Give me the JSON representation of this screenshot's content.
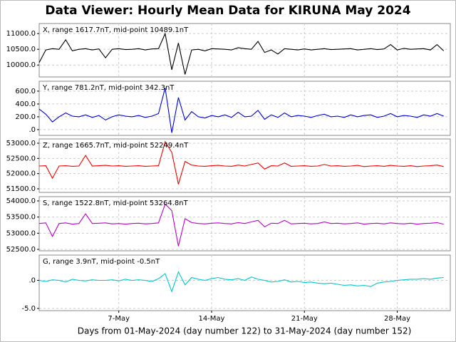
{
  "title": "Data Viewer:  Hourly Mean Data for KIRUNA May 2024",
  "x_axis": {
    "label": "Days from 01-May-2024 (day number 122) to 31-May-2024 (day number 152)",
    "xlim": [
      1,
      32
    ],
    "xticks": [
      {
        "value": 7,
        "label": "7-May"
      },
      {
        "value": 14,
        "label": "14-May"
      },
      {
        "value": 21,
        "label": "21-May"
      },
      {
        "value": 28,
        "label": "28-May"
      }
    ],
    "x": [
      1,
      1.5,
      2,
      2.5,
      3,
      3.5,
      4,
      4.5,
      5,
      5.5,
      6,
      6.5,
      7,
      7.5,
      8,
      8.5,
      9,
      9.5,
      10,
      10.5,
      11,
      11.5,
      12,
      12.5,
      13,
      13.5,
      14,
      14.5,
      15,
      15.5,
      16,
      16.5,
      17,
      17.5,
      18,
      18.5,
      19,
      19.5,
      20,
      20.5,
      21,
      21.5,
      22,
      22.5,
      23,
      23.5,
      24,
      24.5,
      25,
      25.5,
      26,
      26.5,
      27,
      27.5,
      28,
      28.5,
      29,
      29.5,
      30,
      30.5,
      31,
      31.5
    ]
  },
  "chart_data": [
    {
      "type": "line",
      "annotation": "X, range 1617.7nT, mid-point 10489.1nT",
      "ylim": [
        9620,
        11320
      ],
      "yticks": [
        {
          "value": 10000,
          "label": "10000.0"
        },
        {
          "value": 10500,
          "label": "10500.0"
        },
        {
          "value": 11000,
          "label": "11000.0"
        }
      ],
      "series": [
        {
          "color": "#000000",
          "values": [
            10080,
            10480,
            10520,
            10500,
            10800,
            10450,
            10500,
            10520,
            10480,
            10510,
            10230,
            10500,
            10520,
            10490,
            10500,
            10520,
            10480,
            10510,
            10520,
            11000,
            9850,
            10700,
            9700,
            10480,
            10500,
            10450,
            10520,
            10510,
            10500,
            10480,
            10550,
            10520,
            10500,
            10750,
            10400,
            10480,
            10350,
            10520,
            10500,
            10480,
            10510,
            10480,
            10500,
            10520,
            10490,
            10500,
            10510,
            10520,
            10480,
            10500,
            10520,
            10490,
            10510,
            10650,
            10480,
            10530,
            10500,
            10510,
            10520,
            10480,
            10650,
            10450
          ]
        }
      ]
    },
    {
      "type": "line",
      "annotation": "Y, range 781.2nT, mid-point 342.3nT",
      "ylim": [
        -90,
        755
      ],
      "yticks": [
        {
          "value": 0,
          "label": ".0"
        },
        {
          "value": 200,
          "label": "200.0"
        },
        {
          "value": 400,
          "label": "400.0"
        },
        {
          "value": 600,
          "label": "600.0"
        }
      ],
      "series": [
        {
          "color": "#0000dd",
          "values": [
            320,
            240,
            120,
            200,
            260,
            210,
            200,
            230,
            190,
            220,
            150,
            200,
            230,
            210,
            200,
            220,
            190,
            210,
            250,
            650,
            -50,
            500,
            150,
            280,
            200,
            180,
            220,
            200,
            230,
            190,
            270,
            200,
            210,
            300,
            160,
            230,
            190,
            260,
            200,
            220,
            210,
            190,
            220,
            240,
            200,
            210,
            190,
            230,
            200,
            220,
            230,
            190,
            210,
            250,
            200,
            220,
            210,
            190,
            230,
            210,
            250,
            210
          ]
        }
      ]
    },
    {
      "type": "line",
      "annotation": "Z, range 1665.7nT, mid-point 52249.4nT",
      "ylim": [
        51383,
        53140
      ],
      "yticks": [
        {
          "value": 51500,
          "label": "51500.0"
        },
        {
          "value": 52000,
          "label": "52000.0"
        },
        {
          "value": 52500,
          "label": "52500.0"
        },
        {
          "value": 53000,
          "label": "53000.0"
        }
      ],
      "series": [
        {
          "color": "#ee0000",
          "values": [
            52250,
            52260,
            51850,
            52250,
            52260,
            52240,
            52250,
            52600,
            52250,
            52260,
            52270,
            52250,
            52260,
            52240,
            52250,
            52260,
            52240,
            52250,
            52260,
            53050,
            52700,
            51650,
            52400,
            52280,
            52250,
            52240,
            52260,
            52270,
            52250,
            52240,
            52280,
            52250,
            52300,
            52350,
            52150,
            52260,
            52250,
            52350,
            52240,
            52250,
            52260,
            52240,
            52250,
            52300,
            52250,
            52260,
            52240,
            52250,
            52270,
            52230,
            52250,
            52260,
            52240,
            52270,
            52250,
            52240,
            52260,
            52230,
            52250,
            52260,
            52280,
            52230
          ]
        }
      ]
    },
    {
      "type": "line",
      "annotation": "S, range 1522.8nT, mid-point 53264.8nT",
      "ylim": [
        52456,
        54132
      ],
      "yticks": [
        {
          "value": 52500,
          "label": "52500.0"
        },
        {
          "value": 53000,
          "label": "53000.0"
        },
        {
          "value": 53500,
          "label": "53500.0"
        },
        {
          "value": 54000,
          "label": "54000.0"
        }
      ],
      "series": [
        {
          "color": "#bb00cc",
          "values": [
            53300,
            53320,
            52900,
            53300,
            53320,
            53280,
            53300,
            53600,
            53300,
            53310,
            53320,
            53290,
            53300,
            53280,
            53300,
            53310,
            53290,
            53300,
            53320,
            53900,
            53700,
            52600,
            53450,
            53330,
            53300,
            53290,
            53310,
            53320,
            53300,
            53290,
            53330,
            53300,
            53350,
            53400,
            53200,
            53310,
            53300,
            53400,
            53290,
            53300,
            53310,
            53290,
            53300,
            53350,
            53300,
            53310,
            53290,
            53300,
            53320,
            53280,
            53300,
            53310,
            53290,
            53320,
            53300,
            53290,
            53310,
            53280,
            53300,
            53310,
            53330,
            53280
          ]
        }
      ]
    },
    {
      "type": "line",
      "annotation": "G, range 3.9nT, mid-point -0.5nT",
      "ylim": [
        -5.4,
        4.5
      ],
      "yticks": [
        {
          "value": -5,
          "label": "-5.0"
        },
        {
          "value": 0,
          "label": ".0"
        }
      ],
      "series": [
        {
          "color": "#00c8c8",
          "values": [
            0.0,
            -0.2,
            0.1,
            0.0,
            -0.3,
            0.2,
            0.0,
            -0.1,
            0.1,
            0.0,
            0.0,
            0.1,
            -0.1,
            0.2,
            0.0,
            0.1,
            0.0,
            -0.2,
            0.3,
            1.2,
            -2.0,
            1.5,
            -0.8,
            0.5,
            0.2,
            0.0,
            0.3,
            0.5,
            0.2,
            0.1,
            0.3,
            0.0,
            0.6,
            0.2,
            0.0,
            -0.3,
            -0.2,
            0.1,
            -0.3,
            -0.2,
            -0.4,
            -0.3,
            -0.5,
            -0.6,
            -0.5,
            -0.7,
            -0.9,
            -0.8,
            -1.0,
            -0.9,
            -1.1,
            -0.5,
            -0.3,
            -0.2,
            0.0,
            0.1,
            0.2,
            0.2,
            0.3,
            0.2,
            0.4,
            0.5
          ]
        }
      ]
    }
  ]
}
